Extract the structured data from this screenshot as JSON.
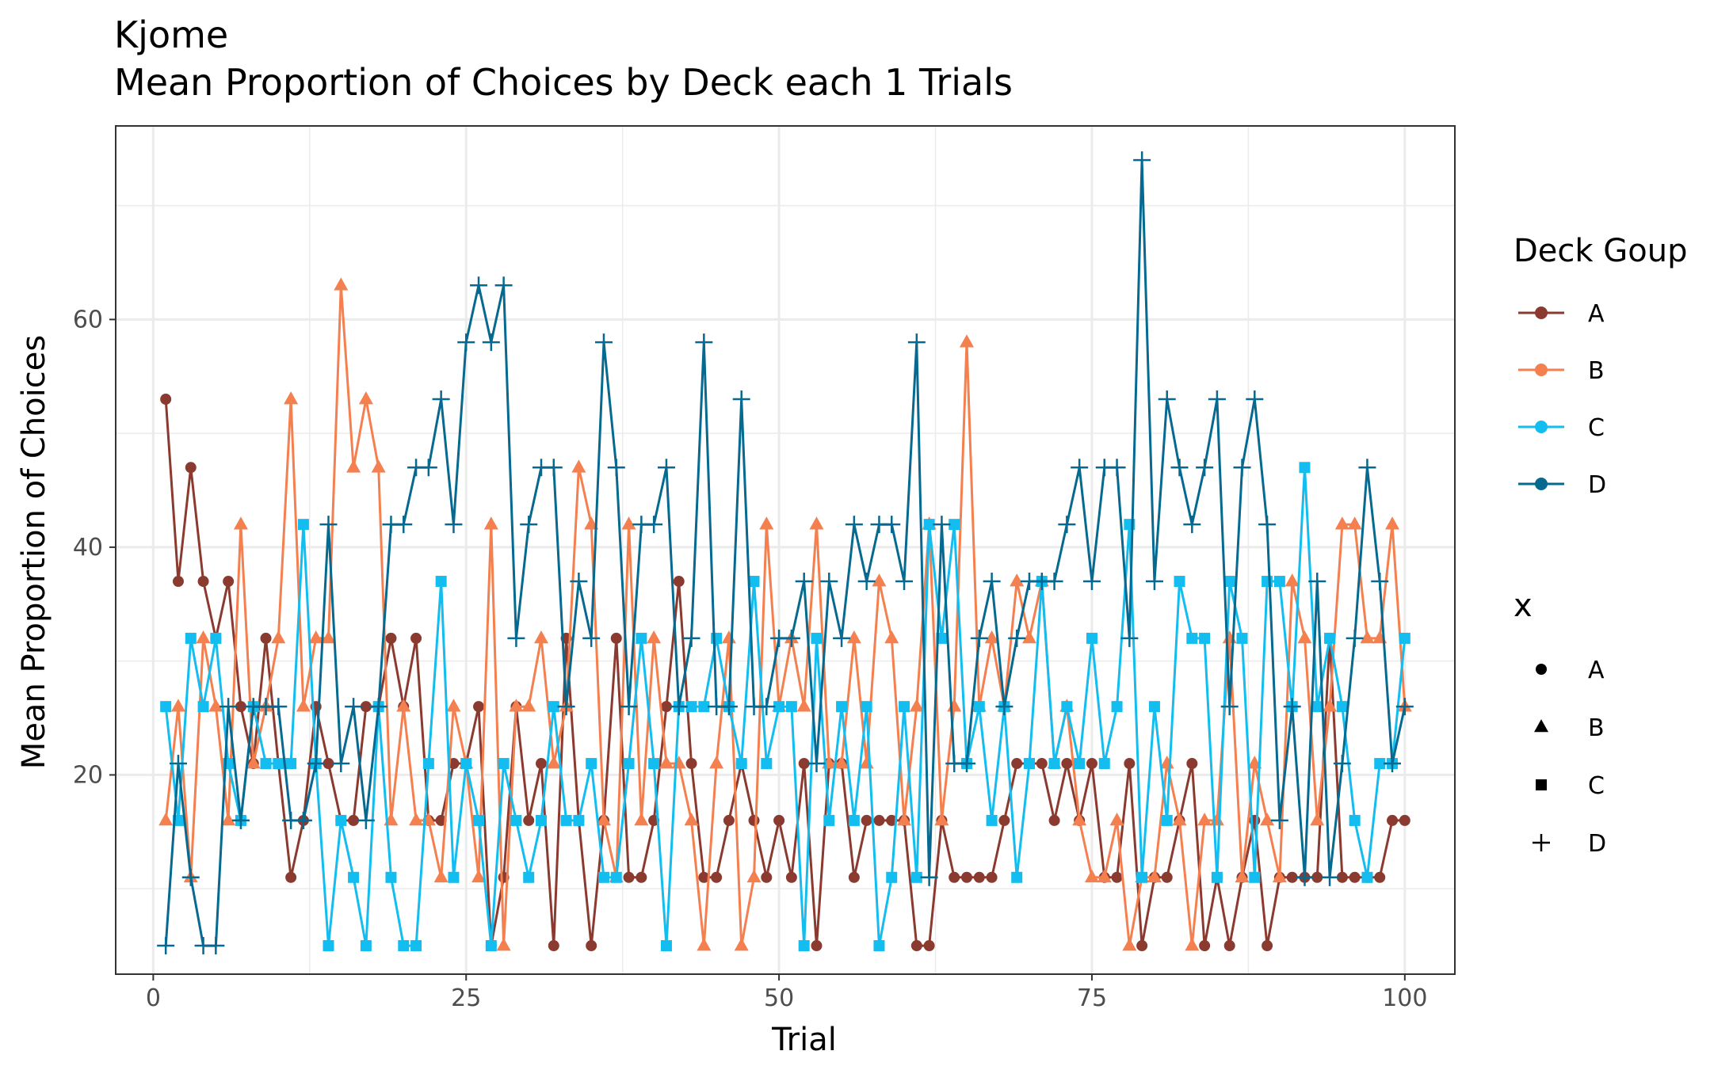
{
  "chart_data": {
    "type": "line",
    "title": "Kjome",
    "subtitle": "Mean Proportion of Choices by Deck each 1 Trials",
    "xlabel": "Trial",
    "ylabel": "Mean Proportion of Choices",
    "xlim": [
      -3,
      104
    ],
    "ylim": [
      2.5,
      77
    ],
    "xticks": [
      0,
      25,
      50,
      75,
      100
    ],
    "yticks": [
      20,
      40,
      60
    ],
    "x_tick_labels": [
      "0",
      "25",
      "50",
      "75",
      "100"
    ],
    "y_tick_labels": [
      "20",
      "40",
      "60"
    ],
    "grid": true,
    "x": [
      1,
      2,
      3,
      4,
      5,
      6,
      7,
      8,
      9,
      10,
      11,
      12,
      13,
      14,
      15,
      16,
      17,
      18,
      19,
      20,
      21,
      22,
      23,
      24,
      25,
      26,
      27,
      28,
      29,
      30,
      31,
      32,
      33,
      34,
      35,
      36,
      37,
      38,
      39,
      40,
      41,
      42,
      43,
      44,
      45,
      46,
      47,
      48,
      49,
      50,
      51,
      52,
      53,
      54,
      55,
      56,
      57,
      58,
      59,
      60,
      61,
      62,
      63,
      64,
      65,
      66,
      67,
      68,
      69,
      70,
      71,
      72,
      73,
      74,
      75,
      76,
      77,
      78,
      79,
      80,
      81,
      82,
      83,
      84,
      85,
      86,
      87,
      88,
      89,
      90,
      91,
      92,
      93,
      94,
      95,
      96,
      97,
      98,
      99,
      100
    ],
    "series": [
      {
        "name": "A",
        "color": "#8b3a2f",
        "shape": "circle",
        "values": [
          53,
          37,
          47,
          37,
          32,
          37,
          26,
          21,
          32,
          21,
          11,
          16,
          26,
          21,
          16,
          16,
          26,
          26,
          32,
          26,
          32,
          16,
          16,
          21,
          21,
          26,
          5,
          11,
          26,
          16,
          21,
          5,
          32,
          16,
          5,
          16,
          32,
          11,
          11,
          16,
          26,
          37,
          21,
          11,
          11,
          16,
          21,
          16,
          11,
          16,
          11,
          21,
          5,
          21,
          21,
          11,
          16,
          16,
          16,
          16,
          5,
          5,
          16,
          11,
          11,
          11,
          11,
          16,
          21,
          21,
          21,
          16,
          21,
          16,
          21,
          11,
          11,
          21,
          5,
          11,
          11,
          16,
          21,
          5,
          11,
          5,
          11,
          16,
          5,
          11,
          11,
          11,
          11,
          32,
          11,
          11,
          11,
          11,
          16,
          16
        ]
      },
      {
        "name": "B",
        "color": "#f47f4f",
        "shape": "triangle",
        "values": [
          16,
          26,
          11,
          32,
          26,
          16,
          42,
          21,
          26,
          32,
          53,
          26,
          32,
          32,
          63,
          47,
          53,
          47,
          16,
          26,
          16,
          16,
          11,
          26,
          21,
          11,
          42,
          5,
          26,
          26,
          32,
          21,
          26,
          47,
          42,
          16,
          11,
          42,
          16,
          32,
          21,
          21,
          16,
          5,
          21,
          32,
          5,
          11,
          42,
          26,
          32,
          26,
          42,
          21,
          21,
          32,
          21,
          37,
          32,
          16,
          26,
          42,
          16,
          26,
          58,
          26,
          32,
          26,
          37,
          32,
          37,
          21,
          26,
          16,
          11,
          11,
          16,
          5,
          11,
          11,
          21,
          16,
          5,
          16,
          16,
          32,
          11,
          21,
          16,
          11,
          37,
          32,
          16,
          26,
          42,
          42,
          32,
          32,
          42,
          26
        ]
      },
      {
        "name": "C",
        "color": "#13bdef",
        "shape": "square",
        "values": [
          26,
          16,
          32,
          26,
          32,
          21,
          16,
          26,
          21,
          21,
          21,
          42,
          21,
          5,
          16,
          11,
          5,
          26,
          11,
          5,
          5,
          21,
          37,
          11,
          21,
          16,
          5,
          21,
          16,
          11,
          16,
          26,
          16,
          16,
          21,
          11,
          11,
          21,
          32,
          21,
          5,
          26,
          26,
          26,
          32,
          26,
          21,
          37,
          21,
          26,
          26,
          5,
          32,
          16,
          26,
          16,
          26,
          5,
          11,
          26,
          11,
          42,
          32,
          42,
          21,
          26,
          16,
          26,
          11,
          21,
          37,
          21,
          26,
          21,
          32,
          21,
          26,
          42,
          11,
          26,
          16,
          37,
          32,
          32,
          11,
          37,
          32,
          11,
          37,
          37,
          26,
          47,
          26,
          32,
          26,
          16,
          11,
          21,
          21,
          32
        ]
      },
      {
        "name": "D",
        "color": "#06698f",
        "shape": "plus",
        "values": [
          5,
          21,
          11,
          5,
          5,
          26,
          16,
          26,
          26,
          26,
          16,
          16,
          21,
          42,
          21,
          26,
          16,
          26,
          42,
          42,
          47,
          47,
          53,
          42,
          58,
          63,
          58,
          63,
          32,
          42,
          47,
          47,
          26,
          37,
          32,
          58,
          47,
          26,
          42,
          42,
          47,
          26,
          32,
          58,
          26,
          26,
          53,
          26,
          26,
          32,
          32,
          37,
          21,
          37,
          32,
          42,
          37,
          42,
          42,
          37,
          58,
          11,
          42,
          21,
          21,
          32,
          37,
          26,
          32,
          37,
          37,
          37,
          42,
          47,
          37,
          47,
          47,
          32,
          74,
          37,
          53,
          47,
          42,
          47,
          53,
          26,
          47,
          53,
          42,
          16,
          26,
          11,
          37,
          11,
          21,
          32,
          47,
          37,
          21,
          26
        ]
      }
    ],
    "legend": {
      "color_title": "Deck Goup",
      "shape_title": "x",
      "labels": [
        "A",
        "B",
        "C",
        "D"
      ],
      "placement": "right"
    }
  }
}
